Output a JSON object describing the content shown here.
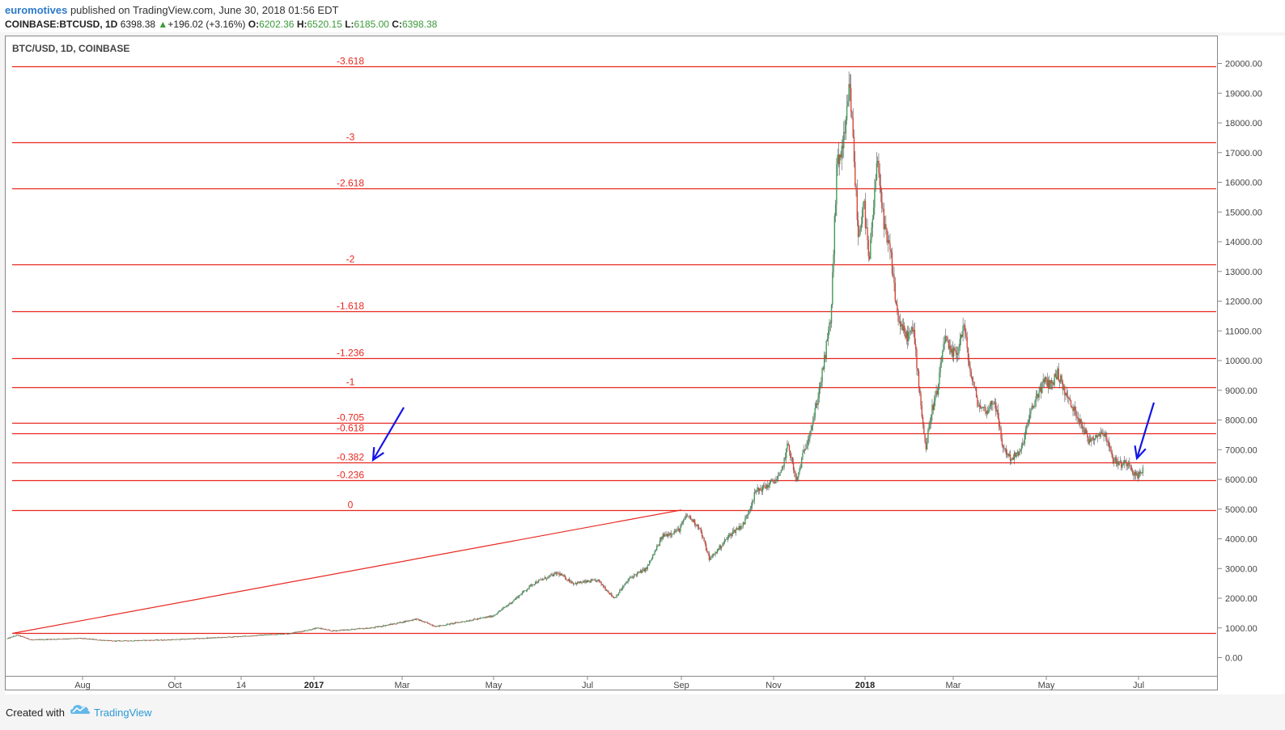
{
  "header": {
    "user": "euromotives",
    "published_text": "published on TradingView.com, June 30, 2018 01:56 EDT",
    "symbol": "COINBASE:BTCUSD, 1D",
    "last": "6398.38",
    "change": "+196.02 (+3.16%)",
    "o_label": "O:",
    "o_value": "6202.36",
    "h_label": "H:",
    "h_value": "6520.15",
    "l_label": "L:",
    "l_value": "6185.00",
    "c_label": "C:",
    "c_value": "6398.38"
  },
  "footer": {
    "created_with": "Created with",
    "brand": "TradingView"
  },
  "colors": {
    "fib": "#e8261f",
    "up": "#3f9a5a",
    "down": "#d8473a",
    "arrow": "#1515e6"
  },
  "chart_data": {
    "type": "candlestick",
    "title": "BTC/USD, 1D, COINBASE",
    "symbol": "BTC/USD",
    "interval": "1D",
    "exchange": "COINBASE",
    "ylim": [
      -300,
      20600
    ],
    "yticks": [
      "20000.00",
      "19000.00",
      "18000.00",
      "17000.00",
      "16000.00",
      "15000.00",
      "14000.00",
      "13000.00",
      "12000.00",
      "11000.00",
      "10000.00",
      "9000.00",
      "8000.00",
      "7000.00",
      "6000.00",
      "5000.00",
      "4000.00",
      "3000.00",
      "2000.00",
      "1000.00",
      "0.00"
    ],
    "xticks": [
      "Aug",
      "Oct",
      "14",
      "2017",
      "Mar",
      "May",
      "Jul",
      "Sep",
      "Nov",
      "2018",
      "Mar",
      "May",
      "Jul"
    ],
    "xticks_bold": [
      "2017",
      "2018"
    ],
    "price_keypoints": [
      {
        "x": 0,
        "y": 640
      },
      {
        "x": 12,
        "y": 760
      },
      {
        "x": 30,
        "y": 600
      },
      {
        "x": 90,
        "y": 650
      },
      {
        "x": 130,
        "y": 560
      },
      {
        "x": 200,
        "y": 600
      },
      {
        "x": 280,
        "y": 700
      },
      {
        "x": 350,
        "y": 820
      },
      {
        "x": 385,
        "y": 1000
      },
      {
        "x": 400,
        "y": 900
      },
      {
        "x": 450,
        "y": 1000
      },
      {
        "x": 480,
        "y": 1150
      },
      {
        "x": 505,
        "y": 1300
      },
      {
        "x": 530,
        "y": 1050
      },
      {
        "x": 560,
        "y": 1200
      },
      {
        "x": 600,
        "y": 1400
      },
      {
        "x": 620,
        "y": 1800
      },
      {
        "x": 650,
        "y": 2500
      },
      {
        "x": 680,
        "y": 2850
      },
      {
        "x": 700,
        "y": 2500
      },
      {
        "x": 730,
        "y": 2600
      },
      {
        "x": 750,
        "y": 2000
      },
      {
        "x": 770,
        "y": 2700
      },
      {
        "x": 790,
        "y": 3000
      },
      {
        "x": 810,
        "y": 4100
      },
      {
        "x": 830,
        "y": 4300
      },
      {
        "x": 840,
        "y": 4800
      },
      {
        "x": 855,
        "y": 4400
      },
      {
        "x": 868,
        "y": 3300
      },
      {
        "x": 880,
        "y": 3700
      },
      {
        "x": 895,
        "y": 4200
      },
      {
        "x": 910,
        "y": 4500
      },
      {
        "x": 925,
        "y": 5600
      },
      {
        "x": 940,
        "y": 5800
      },
      {
        "x": 955,
        "y": 6100
      },
      {
        "x": 965,
        "y": 7200
      },
      {
        "x": 975,
        "y": 5900
      },
      {
        "x": 985,
        "y": 7000
      },
      {
        "x": 997,
        "y": 8100
      },
      {
        "x": 1008,
        "y": 9700
      },
      {
        "x": 1018,
        "y": 11500
      },
      {
        "x": 1025,
        "y": 16500
      },
      {
        "x": 1035,
        "y": 17500
      },
      {
        "x": 1041,
        "y": 19300
      },
      {
        "x": 1046,
        "y": 17000
      },
      {
        "x": 1052,
        "y": 14000
      },
      {
        "x": 1058,
        "y": 15500
      },
      {
        "x": 1065,
        "y": 13200
      },
      {
        "x": 1070,
        "y": 15000
      },
      {
        "x": 1076,
        "y": 16900
      },
      {
        "x": 1083,
        "y": 14500
      },
      {
        "x": 1092,
        "y": 13500
      },
      {
        "x": 1100,
        "y": 11500
      },
      {
        "x": 1110,
        "y": 10800
      },
      {
        "x": 1120,
        "y": 11000
      },
      {
        "x": 1128,
        "y": 8800
      },
      {
        "x": 1135,
        "y": 7000
      },
      {
        "x": 1142,
        "y": 8300
      },
      {
        "x": 1150,
        "y": 9000
      },
      {
        "x": 1158,
        "y": 10800
      },
      {
        "x": 1166,
        "y": 10200
      },
      {
        "x": 1174,
        "y": 10300
      },
      {
        "x": 1182,
        "y": 11200
      },
      {
        "x": 1190,
        "y": 9600
      },
      {
        "x": 1200,
        "y": 8500
      },
      {
        "x": 1210,
        "y": 8300
      },
      {
        "x": 1220,
        "y": 8700
      },
      {
        "x": 1230,
        "y": 7100
      },
      {
        "x": 1240,
        "y": 6700
      },
      {
        "x": 1252,
        "y": 6900
      },
      {
        "x": 1262,
        "y": 8000
      },
      {
        "x": 1272,
        "y": 8800
      },
      {
        "x": 1282,
        "y": 9300
      },
      {
        "x": 1290,
        "y": 9200
      },
      {
        "x": 1298,
        "y": 9600
      },
      {
        "x": 1306,
        "y": 9000
      },
      {
        "x": 1316,
        "y": 8400
      },
      {
        "x": 1326,
        "y": 8000
      },
      {
        "x": 1336,
        "y": 7300
      },
      {
        "x": 1346,
        "y": 7500
      },
      {
        "x": 1356,
        "y": 7600
      },
      {
        "x": 1366,
        "y": 6700
      },
      {
        "x": 1376,
        "y": 6500
      },
      {
        "x": 1386,
        "y": 6600
      },
      {
        "x": 1394,
        "y": 6100
      },
      {
        "x": 1400,
        "y": 6200
      },
      {
        "x": 1404,
        "y": 6398
      }
    ],
    "fib_levels": [
      {
        "label": "-3.618",
        "price": 19900
      },
      {
        "label": "-3",
        "price": 17350
      },
      {
        "label": "-2.618",
        "price": 15800
      },
      {
        "label": "-2",
        "price": 13250
      },
      {
        "label": "-1.618",
        "price": 11660
      },
      {
        "label": "-1.236",
        "price": 10090
      },
      {
        "label": "-1",
        "price": 9110
      },
      {
        "label": "-0.705",
        "price": 7900
      },
      {
        "label": "-0.618",
        "price": 7540
      },
      {
        "label": "-0.382",
        "price": 6570
      },
      {
        "label": "-0.236",
        "price": 5960
      },
      {
        "label": "0",
        "price": 4970
      },
      {
        "label": "",
        "price": 820
      }
    ],
    "trend_line": {
      "from_price": 820,
      "to_price": 4970
    },
    "arrows": 2,
    "grid": false,
    "legend": "none"
  }
}
